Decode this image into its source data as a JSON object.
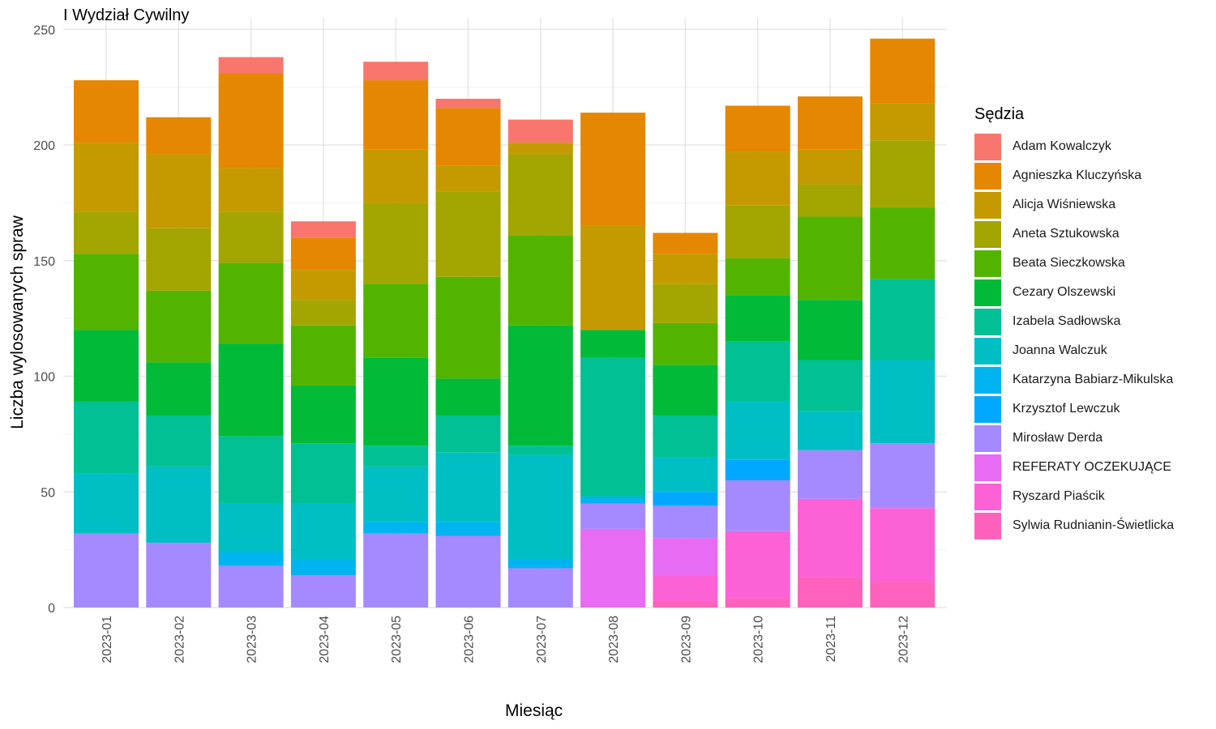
{
  "chart_data": {
    "type": "bar",
    "stacked": true,
    "title": "I Wydział Cywilny",
    "xlabel": "Miesiąc",
    "ylabel": "Liczba wylosowanych spraw",
    "ylim": [
      0,
      250
    ],
    "yticks": [
      0,
      50,
      100,
      150,
      200,
      250
    ],
    "grid": true,
    "legend_title": "Sędzia",
    "legend_position": "right",
    "categories": [
      "2023-01",
      "2023-02",
      "2023-03",
      "2023-04",
      "2023-05",
      "2023-06",
      "2023-07",
      "2023-08",
      "2023-09",
      "2023-10",
      "2023-11",
      "2023-12"
    ],
    "series": [
      {
        "name": "Sylwia Rudnianin-Świetlicka",
        "color": "#FF62BC",
        "values": [
          0,
          0,
          0,
          0,
          0,
          0,
          0,
          0,
          3,
          4,
          13,
          11
        ]
      },
      {
        "name": "Ryszard Piaścik",
        "color": "#FC61D5",
        "values": [
          0,
          0,
          0,
          0,
          0,
          0,
          0,
          0,
          11,
          29,
          34,
          32
        ]
      },
      {
        "name": "REFERATY OCZEKUJĄCE",
        "color": "#E76BF3",
        "values": [
          0,
          0,
          0,
          0,
          0,
          0,
          0,
          34,
          16,
          0,
          0,
          0
        ]
      },
      {
        "name": "Mirosław Derda",
        "color": "#A58AFF",
        "values": [
          32,
          28,
          18,
          14,
          32,
          31,
          17,
          11,
          14,
          22,
          21,
          28
        ]
      },
      {
        "name": "Krzysztof Lewczuk",
        "color": "#00A9FF",
        "values": [
          0,
          0,
          0,
          0,
          0,
          0,
          0,
          0,
          6,
          9,
          0,
          0
        ]
      },
      {
        "name": "Katarzyna Babiarz-Mikulska",
        "color": "#00B4EF",
        "values": [
          0,
          0,
          6,
          7,
          5,
          6,
          4,
          3,
          0,
          0,
          0,
          0
        ]
      },
      {
        "name": "Joanna Walczuk",
        "color": "#00BFC4",
        "values": [
          26,
          33,
          21,
          24,
          24,
          30,
          45,
          0,
          15,
          25,
          17,
          36
        ]
      },
      {
        "name": "Izabela Sadłowska",
        "color": "#00C094",
        "values": [
          31,
          22,
          29,
          26,
          9,
          16,
          4,
          60,
          18,
          26,
          22,
          35
        ]
      },
      {
        "name": "Cezary Olszewski",
        "color": "#00BA38",
        "values": [
          31,
          23,
          40,
          25,
          38,
          16,
          52,
          12,
          22,
          20,
          26,
          0
        ]
      },
      {
        "name": "Beata Sieczkowska",
        "color": "#53B400",
        "values": [
          33,
          31,
          35,
          26,
          32,
          44,
          39,
          0,
          18,
          16,
          36,
          31
        ]
      },
      {
        "name": "Aneta Sztukowska",
        "color": "#A3A500",
        "values": [
          18,
          27,
          22,
          11,
          35,
          37,
          35,
          0,
          17,
          23,
          14,
          29
        ]
      },
      {
        "name": "Alicja Wiśniewska",
        "color": "#C49A00",
        "values": [
          30,
          32,
          19,
          13,
          23,
          11,
          5,
          45,
          13,
          23,
          15,
          16
        ]
      },
      {
        "name": "Agnieszka Kluczyńska",
        "color": "#E58700",
        "values": [
          27,
          16,
          41,
          14,
          30,
          25,
          0,
          49,
          9,
          20,
          23,
          28
        ]
      },
      {
        "name": "Adam Kowalczyk",
        "color": "#F8766D",
        "values": [
          0,
          0,
          7,
          7,
          8,
          4,
          10,
          0,
          0,
          0,
          0,
          0
        ]
      }
    ]
  },
  "legend_order": [
    "Adam Kowalczyk",
    "Agnieszka Kluczyńska",
    "Alicja Wiśniewska",
    "Aneta Sztukowska",
    "Beata Sieczkowska",
    "Cezary Olszewski",
    "Izabela Sadłowska",
    "Joanna Walczuk",
    "Katarzyna Babiarz-Mikulska",
    "Krzysztof Lewczuk",
    "Mirosław Derda",
    "REFERATY OCZEKUJĄCE",
    "Ryszard Piaścik",
    "Sylwia Rudnianin-Świetlicka"
  ]
}
